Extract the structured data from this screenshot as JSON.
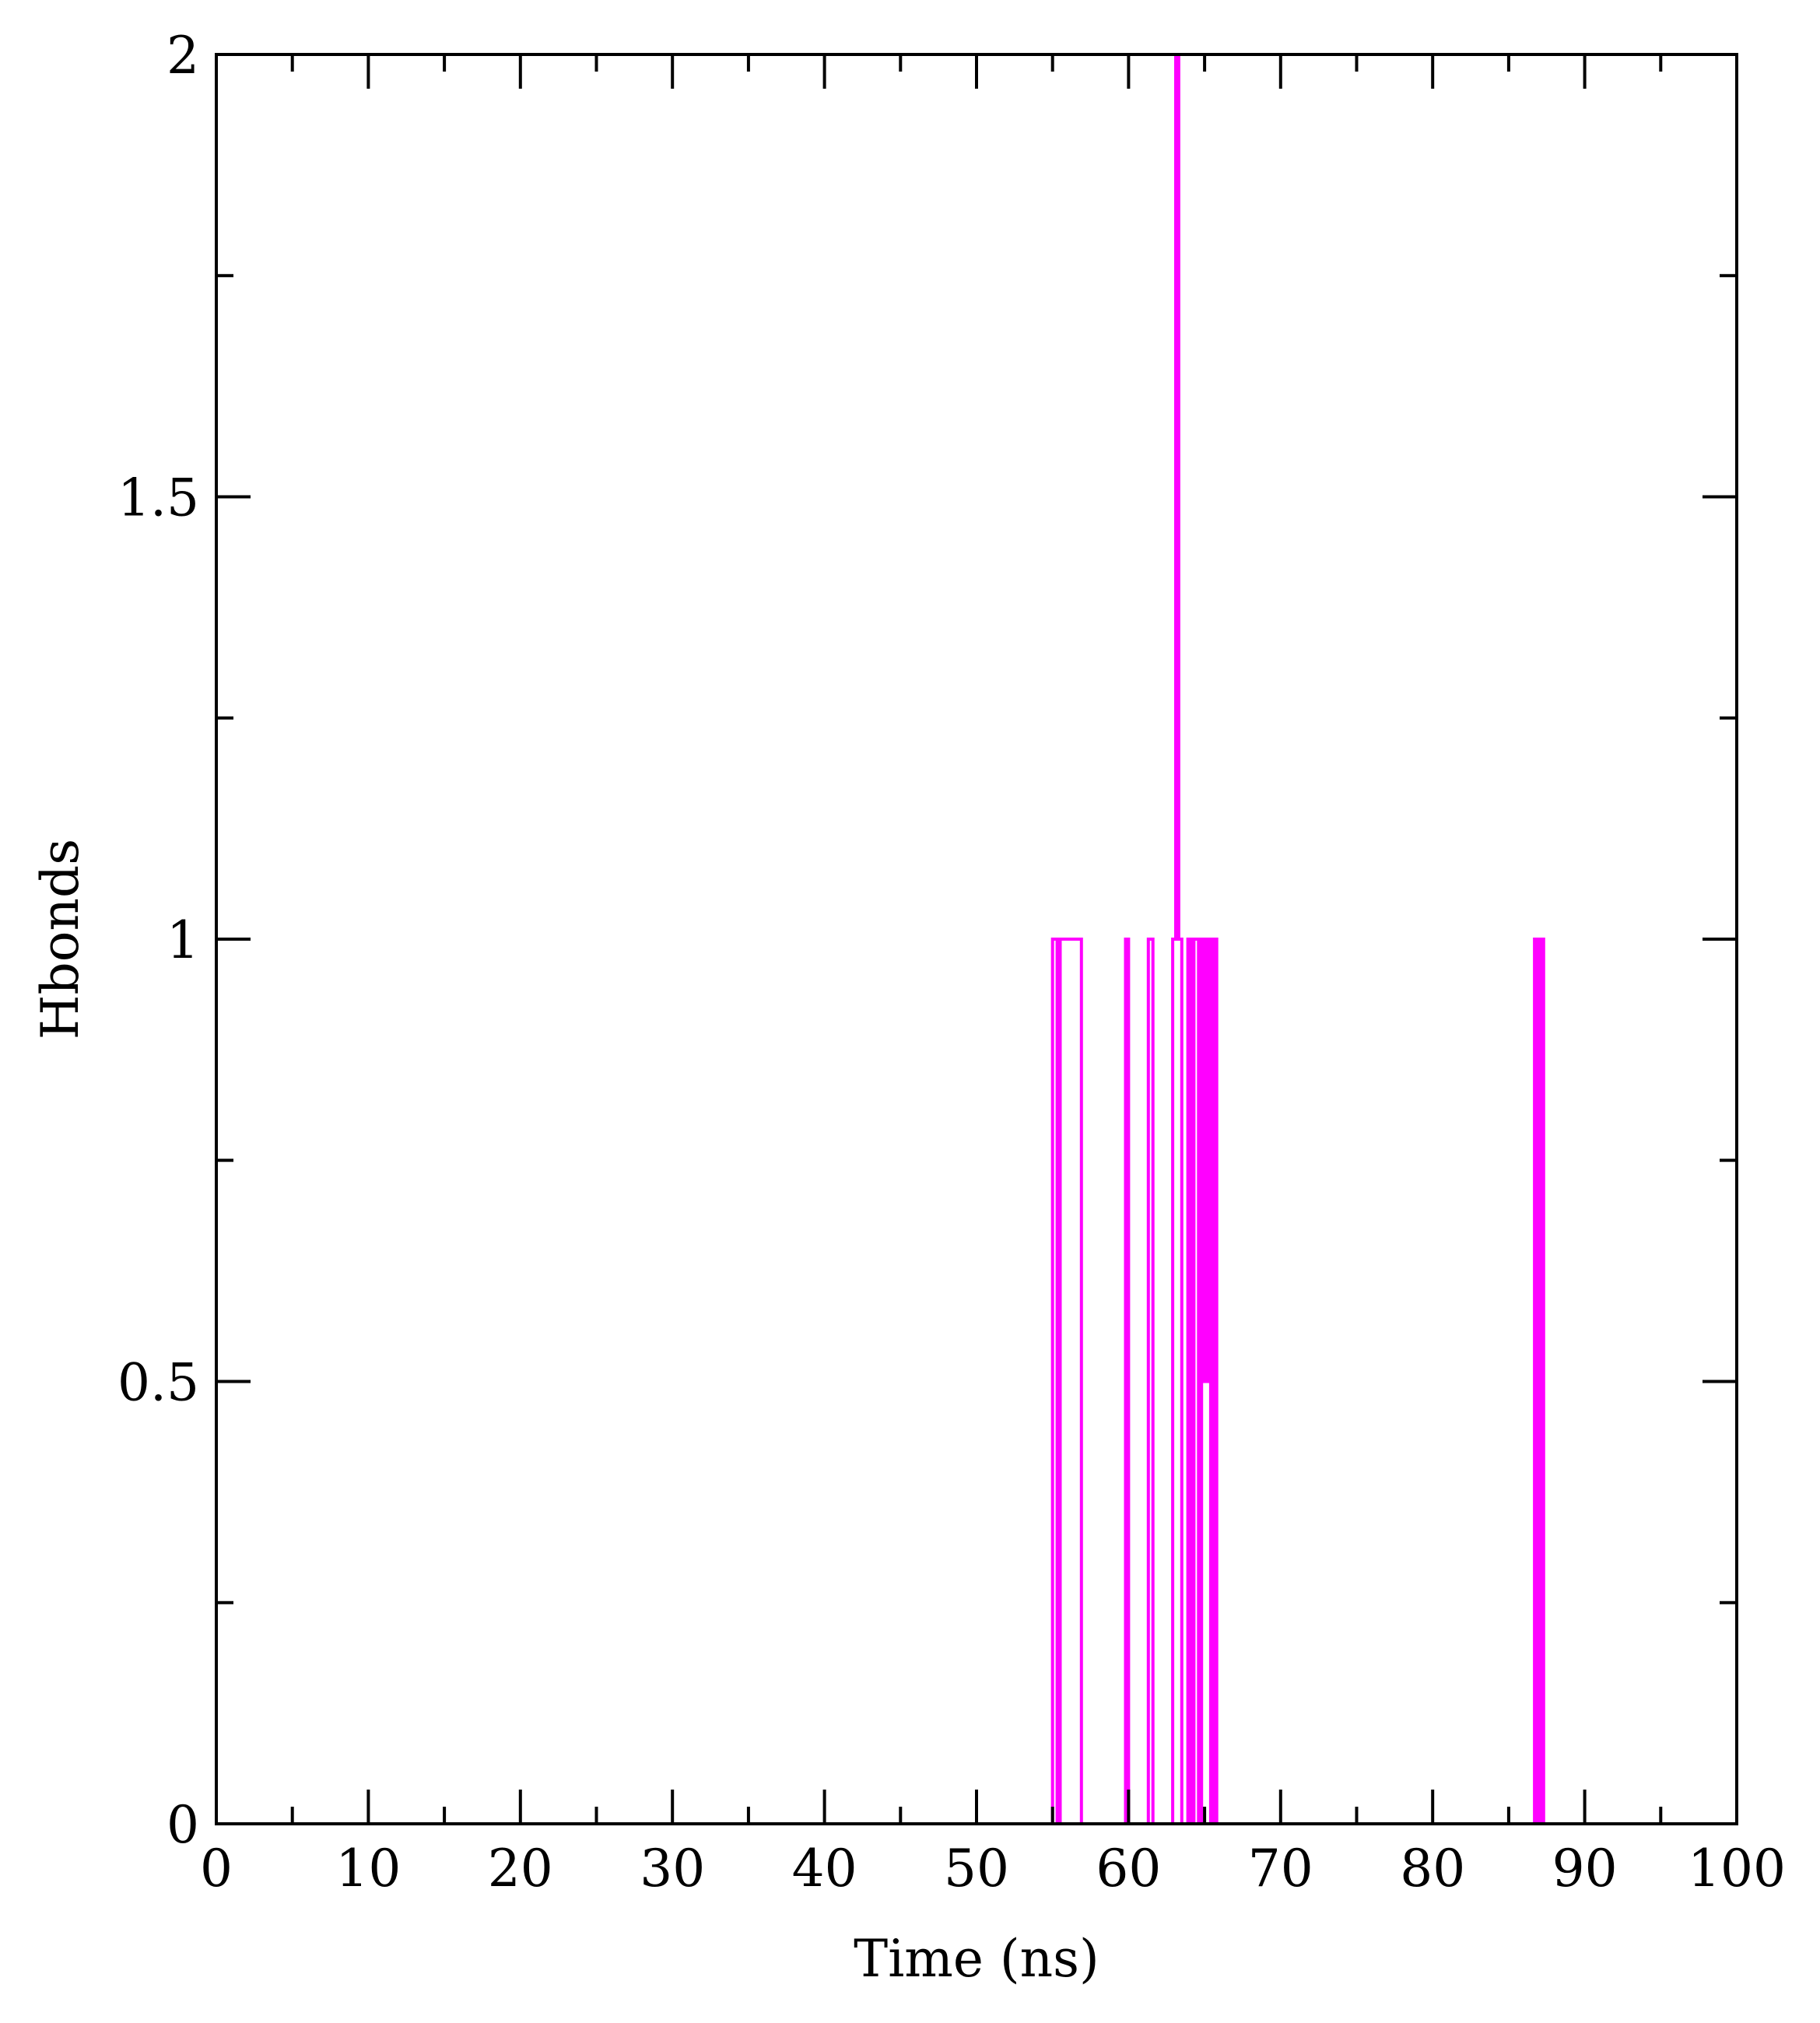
{
  "chart_data": {
    "type": "line",
    "title": "",
    "xlabel": "Time (ns)",
    "ylabel": "Hbonds",
    "xlim": [
      0,
      100
    ],
    "ylim": [
      0,
      2
    ],
    "x_ticks": [
      0,
      10,
      20,
      30,
      40,
      50,
      60,
      70,
      80,
      90,
      100
    ],
    "x_tick_labels": [
      "0",
      "10",
      "20",
      "30",
      "40",
      "50",
      "60",
      "70",
      "80",
      "90",
      "100"
    ],
    "y_ticks": [
      0,
      0.5,
      1,
      1.5,
      2
    ],
    "y_tick_labels": [
      "0",
      "0.5",
      "1",
      "1.5",
      "2"
    ],
    "x_minor_ticks": [
      5,
      15,
      25,
      35,
      45,
      55,
      65,
      75,
      85,
      95
    ],
    "y_minor_ticks": [
      0.25,
      0.75,
      1.25,
      1.75
    ],
    "grid": false,
    "legend": "none",
    "series": [
      {
        "color": "#ff00ff",
        "x": [
          0,
          55.0,
          55.0,
          55.3,
          55.3,
          55.5,
          55.5,
          56.9,
          56.9,
          59.8,
          59.8,
          60.0,
          60.0,
          61.3,
          61.3,
          61.6,
          61.6,
          62.9,
          62.9,
          63.1,
          63.1,
          63.3,
          63.3,
          63.5,
          63.5,
          63.9,
          63.9,
          64.1,
          64.1,
          64.3,
          64.3,
          64.6,
          64.6,
          64.8,
          64.8,
          65.0,
          65.0,
          65.2,
          65.2,
          65.4,
          65.4,
          65.6,
          65.6,
          65.8,
          65.8,
          86.7,
          86.7,
          86.9,
          86.9,
          87.1,
          87.1,
          87.3,
          87.3,
          100
        ],
        "y": [
          0,
          0,
          1,
          1,
          0,
          0,
          1,
          1,
          0,
          0,
          1,
          1,
          0,
          0,
          1,
          1,
          0,
          0,
          1,
          1,
          2,
          2,
          1,
          1,
          0,
          0,
          1,
          1,
          0,
          0,
          1,
          1,
          0,
          0,
          1,
          1,
          0.5,
          0.5,
          1,
          1,
          0,
          0,
          1,
          1,
          0,
          0,
          1,
          1,
          0,
          0,
          1,
          1,
          0,
          0
        ]
      }
    ]
  }
}
